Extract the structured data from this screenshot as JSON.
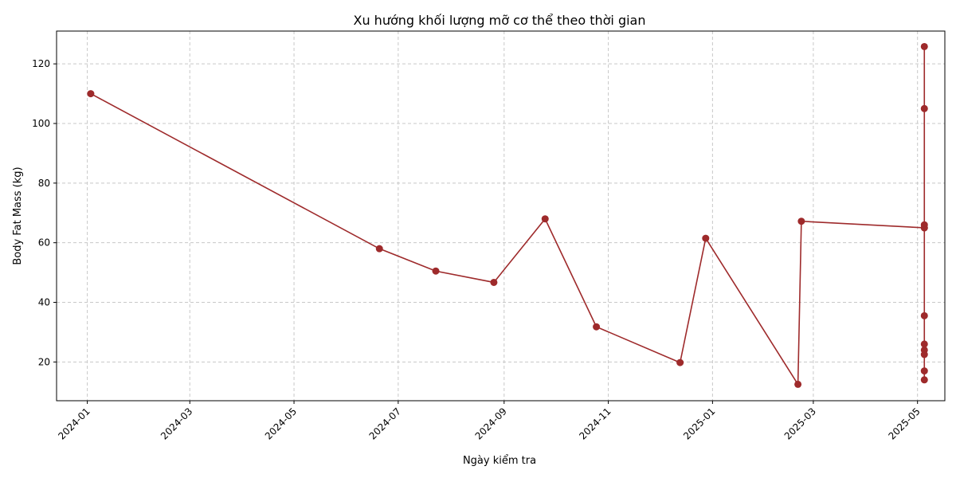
{
  "chart_data": {
    "type": "line",
    "title": "Xu hướng khối lượng mỡ cơ thể theo thời gian",
    "xlabel": "Ngày kiểm tra",
    "ylabel": "Body Fat Mass (kg)",
    "x_ticks": [
      "2024-01",
      "2024-03",
      "2024-05",
      "2024-07",
      "2024-09",
      "2024-11",
      "2025-01",
      "2025-03",
      "2025-05"
    ],
    "y_ticks": [
      20,
      40,
      60,
      80,
      100,
      120
    ],
    "xlim": [
      "2023-12-14",
      "2025-05-17"
    ],
    "ylim": [
      7,
      131
    ],
    "grid": true,
    "color": "#9e2a2b",
    "series": [
      {
        "x": [
          "2024-01-03",
          "2024-06-20",
          "2024-07-23",
          "2024-08-26",
          "2024-09-25",
          "2024-10-25",
          "2024-12-13",
          "2024-12-28",
          "2025-02-20",
          "2025-02-22",
          "2025-05-05",
          "2025-05-05",
          "2025-05-05",
          "2025-05-05",
          "2025-05-05",
          "2025-05-05",
          "2025-05-05",
          "2025-05-05",
          "2025-05-05",
          "2025-05-05",
          "2025-05-05"
        ],
        "values": [
          110,
          58,
          50.5,
          46.7,
          68,
          31.8,
          19.8,
          61.5,
          12.5,
          67.2,
          65,
          125.8,
          105,
          66,
          35.5,
          26,
          24,
          22.5,
          17,
          14,
          65
        ]
      }
    ]
  }
}
